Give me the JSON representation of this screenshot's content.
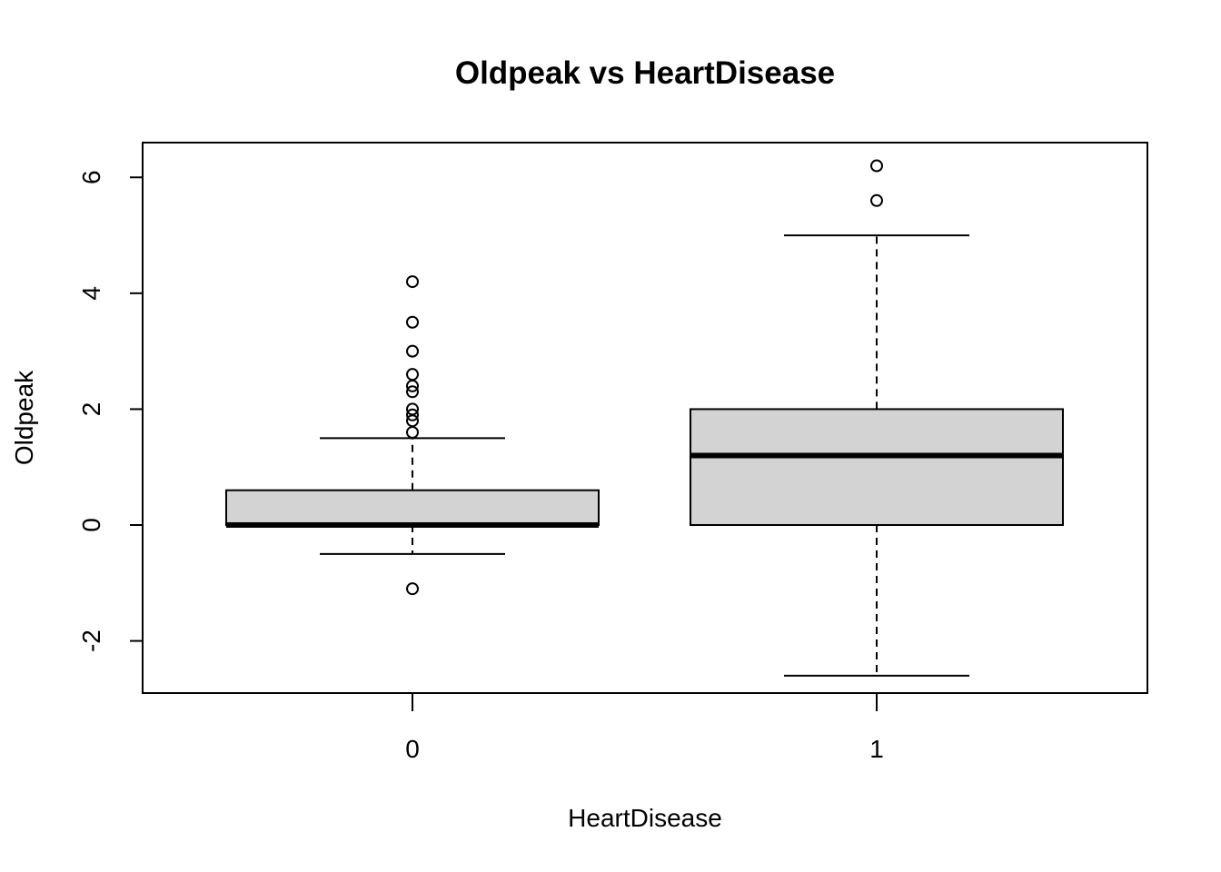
{
  "chart_data": {
    "type": "boxplot",
    "title": "Oldpeak vs HeartDisease",
    "xlabel": "HeartDisease",
    "ylabel": "Oldpeak",
    "categories": [
      "0",
      "1"
    ],
    "ylim": [
      -2.9,
      6.6
    ],
    "yticks": [
      -2,
      0,
      2,
      4,
      6
    ],
    "yticklabels": [
      "-2",
      "0",
      "2",
      "4",
      "6"
    ],
    "box_fill": "#d3d3d3",
    "line_color": "#000000",
    "grid": false,
    "legend": "none",
    "boxes": [
      {
        "category": "0",
        "whisker_low": -0.5,
        "q1": 0.0,
        "median": 0.0,
        "q3": 0.6,
        "whisker_high": 1.5,
        "outliers": [
          -1.1,
          1.6,
          1.8,
          1.9,
          2.0,
          2.3,
          2.4,
          2.6,
          3.0,
          3.5,
          4.2
        ]
      },
      {
        "category": "1",
        "whisker_low": -2.6,
        "q1": 0.0,
        "median": 1.2,
        "q3": 2.0,
        "whisker_high": 5.0,
        "outliers": [
          5.6,
          6.2
        ]
      }
    ]
  }
}
